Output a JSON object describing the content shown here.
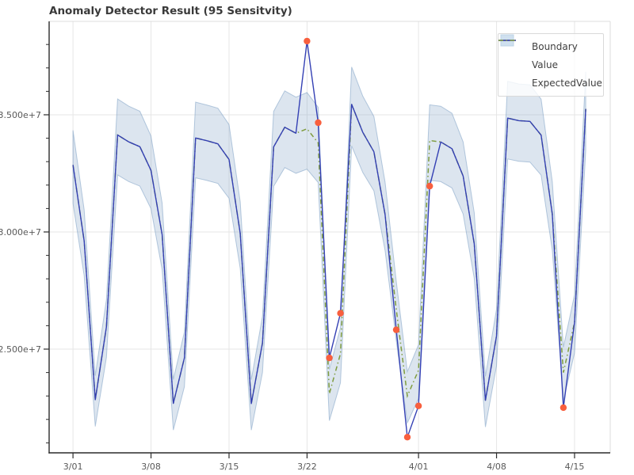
{
  "chart_data": {
    "type": "line",
    "title": "Anomaly Detector Result (95 Sensitvity)",
    "legend": [
      "Boundary",
      "Value",
      "ExpectedValue"
    ],
    "legend_position": "upper right",
    "grid": true,
    "xlim_day_index": [
      -2.14,
      48.2
    ],
    "ylim": [
      20574000,
      38986000
    ],
    "axes": {
      "x_tick_labels": [
        "3/01",
        "3/08",
        "3/15",
        "3/22",
        "4/01",
        "4/08",
        "4/15"
      ],
      "x_tick_days": [
        0,
        7,
        14,
        21,
        31,
        38,
        45
      ],
      "y_tick_labels": [
        "3.500e+7",
        "3.000e+7",
        "2.500e+7"
      ],
      "y_tick_values": [
        35000000,
        30000000,
        25000000
      ],
      "y_minor_min": 21000000,
      "y_minor_max": 38000000,
      "y_minor_step": 1000000
    },
    "dates": [
      "3/01",
      "3/02",
      "3/03",
      "3/04",
      "3/05",
      "3/06",
      "3/07",
      "3/08",
      "3/09",
      "3/10",
      "3/11",
      "3/12",
      "3/13",
      "3/14",
      "3/15",
      "3/16",
      "3/17",
      "3/18",
      "3/19",
      "3/20",
      "3/21",
      "3/22",
      "3/23",
      "3/24",
      "3/25",
      "3/26",
      "3/27",
      "3/28",
      "3/29",
      "3/30",
      "3/31",
      "4/01",
      "4/02",
      "4/03",
      "4/04",
      "4/05",
      "4/06",
      "4/07",
      "4/08",
      "4/09",
      "4/10",
      "4/11",
      "4/12",
      "4/13",
      "4/14",
      "4/15",
      "4/16"
    ],
    "values": [
      32858923,
      29615278,
      22839355,
      25948736,
      34139159,
      33843985,
      33637661,
      32627350,
      29881076,
      22681575,
      24629393,
      34010679,
      33893888,
      33760076,
      33093515,
      29945555,
      22676212,
      25262514,
      33631649,
      34468310,
      34212281,
      38144434,
      34662949,
      24623684,
      26530491,
      35445003,
      34250789,
      33423012,
      30744783,
      25825128,
      21244209,
      22576956,
      31957221,
      33841228,
      33554483,
      32383350,
      29494850,
      22815534,
      25557267,
      34858252,
      34750597,
      34717956,
      34132534,
      30762236,
      22504059,
      26149060,
      35250105
    ],
    "expected": [
      32858923,
      29615278,
      22839355,
      25948736,
      34139159,
      33843985,
      33637661,
      32627350,
      29881076,
      22681575,
      24629393,
      34010679,
      33893888,
      33760076,
      33093515,
      29945555,
      22676212,
      25262514,
      33631649,
      34468310,
      34212281,
      34400000,
      33800000,
      23100000,
      24800000,
      35445003,
      34250789,
      33423012,
      30744783,
      26700000,
      23000000,
      24100000,
      33900000,
      33841228,
      33554483,
      32383350,
      29494850,
      22815534,
      25557267,
      34858252,
      34750597,
      34717956,
      34132534,
      30762236,
      24000000,
      26149060,
      35250105
    ],
    "anomaly_indices": [
      21,
      22,
      23,
      24,
      29,
      30,
      31,
      32,
      44
    ],
    "boundary": {
      "upper_margin_pct": 4.5,
      "lower_margin_pct": 5.0,
      "fill_opacity": 0.27,
      "edge_opacity": 0.55
    },
    "colors": {
      "value_line": "#3440b4",
      "expected_line": "#7f9c3e",
      "boundary": "#7da0c5",
      "boundary_legend_fill": "#cfe0ef",
      "anomaly_dot": "#f85f3e",
      "grid": "#e6e6e6",
      "plot_border": "#dcdcdc",
      "spine": "#2b2b2b",
      "tick_label": "#585858",
      "title": "#3a3a3a",
      "legend_text": "#3f3f3f",
      "legend_border": "#d9d9d9"
    }
  }
}
